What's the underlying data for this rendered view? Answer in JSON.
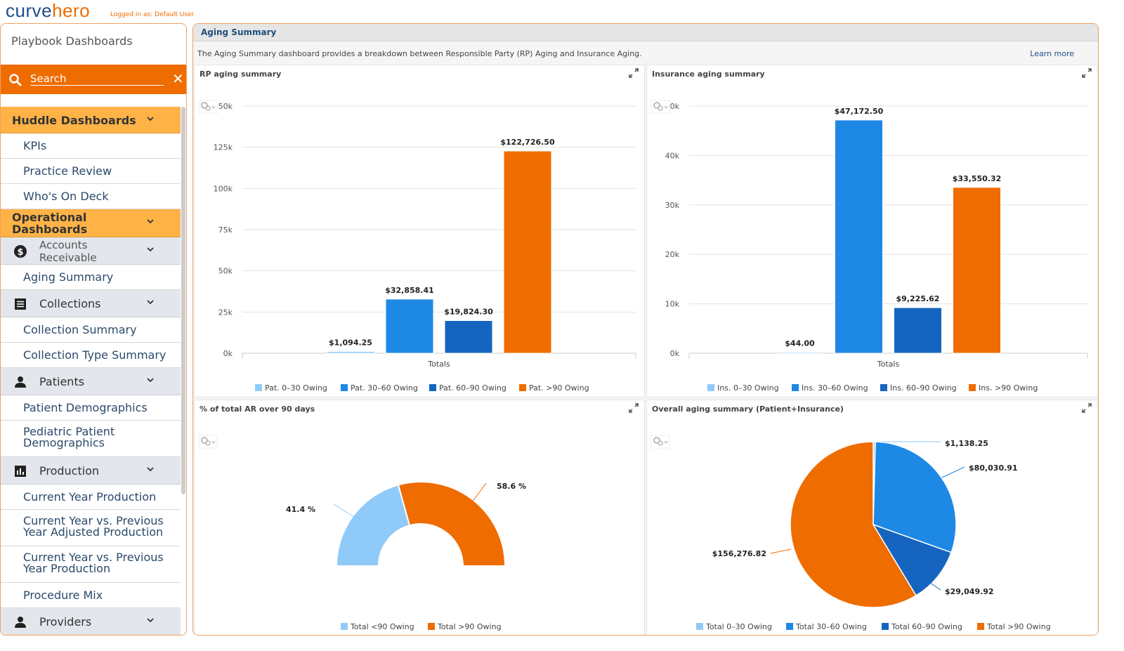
{
  "app": {
    "logo_part1": "curve",
    "logo_part2": "hero",
    "logged_in": "Logged in as: Default User"
  },
  "sidebar": {
    "title": "Playbook Dashboards",
    "search_placeholder": "Search",
    "sections": [
      {
        "label": "Huddle Dashboards",
        "items": [
          "KPIs",
          "Practice Review",
          "Who's On Deck"
        ]
      },
      {
        "label": "Operational Dashboards"
      }
    ],
    "groups": [
      {
        "label": "Accounts Receivable",
        "icon": "dollar-icon",
        "items": [
          "Aging Summary"
        ]
      },
      {
        "label": "Collections",
        "icon": "list-icon",
        "items": [
          "Collection Summary",
          "Collection Type Summary"
        ]
      },
      {
        "label": "Patients",
        "icon": "person-icon",
        "items": [
          "Patient Demographics",
          "Pediatric Patient Demographics"
        ]
      },
      {
        "label": "Production",
        "icon": "bar-chart-icon",
        "items": [
          "Current Year Production",
          "Current Year vs. Previous Year Adjusted Production",
          "Current Year vs. Previous Year Production",
          "Procedure Mix"
        ]
      },
      {
        "label": "Providers",
        "icon": "person-icon"
      }
    ]
  },
  "main": {
    "title": "Aging Summary",
    "description": "The Aging Summary dashboard provides a breakdown between Responsible Party (RP) Aging and Insurance Aging.",
    "learn_more": "Learn more"
  },
  "colors": {
    "light": "#90caf9",
    "mid": "#1e88e5",
    "dark": "#1565c0",
    "orange": "#ef6c00"
  },
  "chart_data": [
    {
      "type": "bar",
      "title": "RP aging summary",
      "categories": [
        "Totals"
      ],
      "series": [
        {
          "name": "Pat. 0–30 Owing",
          "values": [
            1094.25
          ],
          "label": "$1,094.25"
        },
        {
          "name": "Pat. 30–60 Owing",
          "values": [
            32858.41
          ],
          "label": "$32,858.41"
        },
        {
          "name": "Pat. 60–90 Owing",
          "values": [
            19824.3
          ],
          "label": "$19,824.30"
        },
        {
          "name": "Pat. >90 Owing",
          "values": [
            122726.5
          ],
          "label": "$122,726.50"
        }
      ],
      "yticks": [
        "0k",
        "25k",
        "50k",
        "75k",
        "100k",
        "125k",
        "150k"
      ],
      "ylim": [
        0,
        150000
      ]
    },
    {
      "type": "bar",
      "title": "Insurance aging summary",
      "categories": [
        "Totals"
      ],
      "series": [
        {
          "name": "Ins. 0–30 Owing",
          "values": [
            44.0
          ],
          "label": "$44.00"
        },
        {
          "name": "Ins. 30–60 Owing",
          "values": [
            47172.5
          ],
          "label": "$47,172.50"
        },
        {
          "name": "Ins. 60–90 Owing",
          "values": [
            9225.62
          ],
          "label": "$9,225.62"
        },
        {
          "name": "Ins. >90 Owing",
          "values": [
            33550.32
          ],
          "label": "$33,550.32"
        }
      ],
      "yticks": [
        "0k",
        "10k",
        "20k",
        "30k",
        "40k",
        "50k"
      ],
      "ylim": [
        0,
        50000
      ]
    },
    {
      "type": "pie",
      "variant": "semi-donut",
      "title": "% of total AR over 90 days",
      "series": [
        {
          "name": "Total <90 Owing",
          "value": 41.4,
          "label": "41.4 %"
        },
        {
          "name": "Total >90 Owing",
          "value": 58.6,
          "label": "58.6 %"
        }
      ]
    },
    {
      "type": "pie",
      "title": "Overall aging summary (Patient+Insurance)",
      "series": [
        {
          "name": "Total 0–30 Owing",
          "value": 1138.25,
          "label": "$1,138.25"
        },
        {
          "name": "Total 30–60 Owing",
          "value": 80030.91,
          "label": "$80,030.91"
        },
        {
          "name": "Total 60–90 Owing",
          "value": 29049.92,
          "label": "$29,049.92"
        },
        {
          "name": "Total >90 Owing",
          "value": 156276.82,
          "label": "$156,276.82"
        }
      ]
    }
  ]
}
